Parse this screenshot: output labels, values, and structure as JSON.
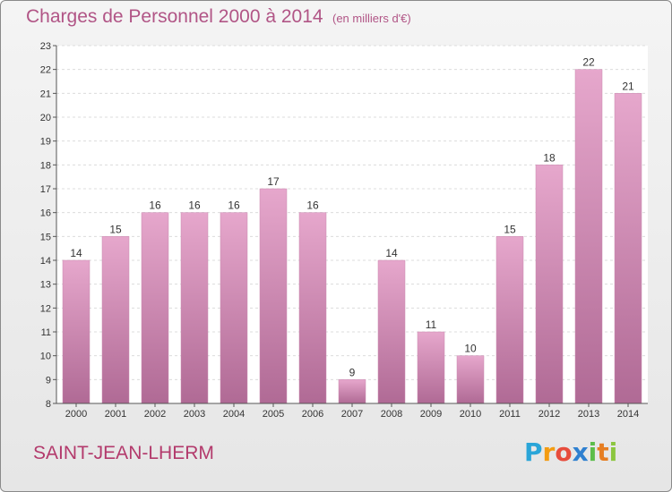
{
  "title": "Charges de Personnel 2000 à 2014",
  "unit_note": "(en milliers d'€)",
  "commune": "SAINT-JEAN-LHERM",
  "brand": "Proxiti",
  "colors": {
    "bar_top": "#e6a7cc",
    "bar_bottom": "#b06a95",
    "title": "#b15586",
    "commune": "#b33a6c"
  },
  "chart_data": {
    "type": "bar",
    "categories": [
      "2000",
      "2001",
      "2002",
      "2003",
      "2004",
      "2005",
      "2006",
      "2007",
      "2008",
      "2009",
      "2010",
      "2011",
      "2012",
      "2013",
      "2014"
    ],
    "values": [
      14,
      15,
      16,
      16,
      16,
      17,
      16,
      9,
      14,
      11,
      10,
      15,
      18,
      22,
      21
    ],
    "data_labels": [
      "14",
      "15",
      "16",
      "16",
      "16",
      "17",
      "16",
      "9",
      "14",
      "11",
      "10",
      "15",
      "18",
      "22",
      "21"
    ],
    "ylim": [
      8,
      23
    ],
    "yticks": [
      8,
      9,
      10,
      11,
      12,
      13,
      14,
      15,
      16,
      17,
      18,
      19,
      20,
      21,
      22,
      23
    ],
    "grid": true,
    "xlabel": "",
    "ylabel": ""
  }
}
